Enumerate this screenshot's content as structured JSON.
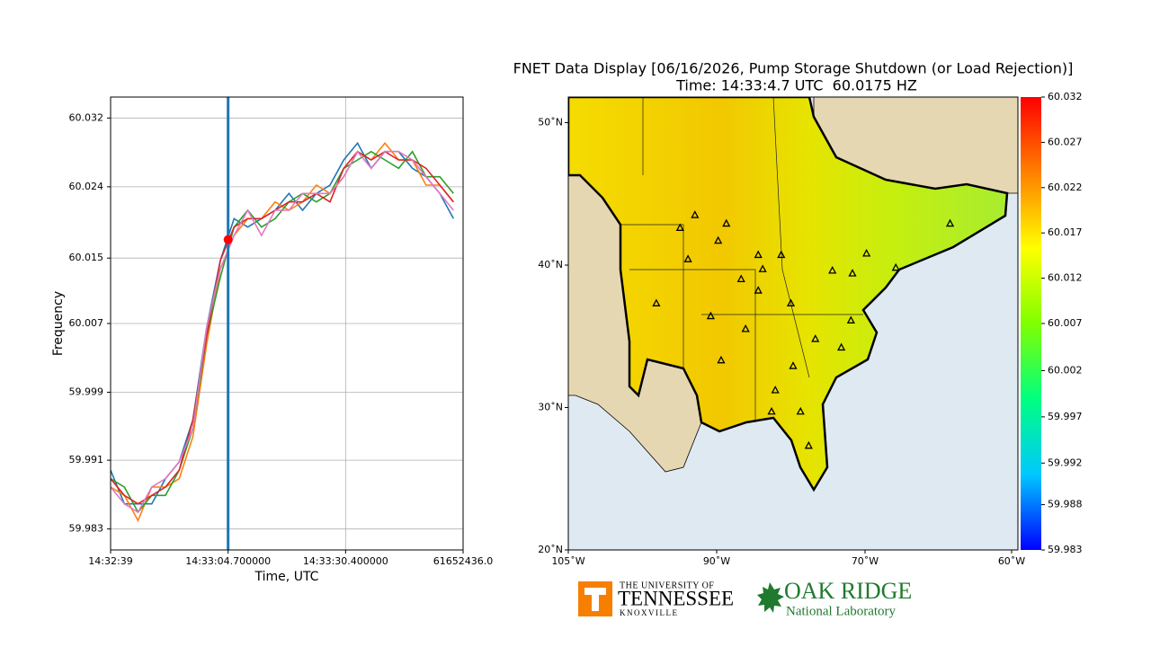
{
  "chart_data": [
    {
      "type": "line",
      "y_label": "Frequency",
      "x_label": "Time, UTC",
      "x": [
        0,
        3,
        6,
        9,
        12,
        15,
        18,
        21,
        24,
        27,
        30,
        33,
        36,
        39,
        42,
        45,
        48,
        51,
        54,
        57,
        60,
        63,
        66,
        69,
        72,
        75
      ],
      "series": [
        {
          "color": "#1f77b4",
          "values": [
            59.99,
            59.986,
            59.986,
            59.986,
            59.989,
            59.991,
            59.996,
            60.007,
            60.015,
            60.02,
            60.019,
            60.02,
            60.021,
            60.023,
            60.021,
            60.023,
            60.024,
            60.027,
            60.029,
            60.026,
            60.028,
            60.028,
            60.026,
            60.025,
            60.023,
            60.02
          ]
        },
        {
          "color": "#ff7f0e",
          "values": [
            59.988,
            59.987,
            59.984,
            59.988,
            59.988,
            59.989,
            59.994,
            60.005,
            60.014,
            60.018,
            60.02,
            60.02,
            60.022,
            60.021,
            60.022,
            60.024,
            60.023,
            60.025,
            60.028,
            60.027,
            60.029,
            60.027,
            60.027,
            60.024,
            60.024,
            60.022
          ]
        },
        {
          "color": "#2ca02c",
          "values": [
            59.989,
            59.988,
            59.985,
            59.987,
            59.987,
            59.99,
            59.995,
            60.006,
            60.013,
            60.019,
            60.021,
            60.019,
            60.02,
            60.022,
            60.023,
            60.022,
            60.023,
            60.026,
            60.027,
            60.028,
            60.027,
            60.026,
            60.028,
            60.025,
            60.025,
            60.023
          ]
        },
        {
          "color": "#d62728",
          "values": [
            59.989,
            59.987,
            59.986,
            59.987,
            59.988,
            59.99,
            59.996,
            60.006,
            60.015,
            60.019,
            60.02,
            60.02,
            60.021,
            60.022,
            60.022,
            60.023,
            60.022,
            60.026,
            60.028,
            60.027,
            60.028,
            60.027,
            60.027,
            60.026,
            60.024,
            60.022
          ]
        },
        {
          "color": "#e377c2",
          "values": [
            59.988,
            59.986,
            59.985,
            59.988,
            59.989,
            59.991,
            59.995,
            60.007,
            60.014,
            60.018,
            60.021,
            60.018,
            60.021,
            60.021,
            60.023,
            60.023,
            60.023,
            60.025,
            60.028,
            60.026,
            60.028,
            60.028,
            60.027,
            60.025,
            60.023,
            60.021
          ]
        }
      ],
      "xlim": [
        0,
        77.1
      ],
      "ylim": [
        59.9805,
        60.0345
      ],
      "xticks": [
        {
          "value": 0,
          "label": "14:32:39"
        },
        {
          "value": 25.7,
          "label": "14:33:04.700000"
        },
        {
          "value": 51.4,
          "label": "14:33:30.400000"
        },
        {
          "value": 77.1,
          "label": "61652436.0"
        }
      ],
      "yticks": [
        59.983,
        {
          "value": 59.9912,
          "label": "59.991"
        },
        {
          "value": 59.9993,
          "label": "59.999"
        },
        {
          "value": 60.0075,
          "label": "60.007"
        },
        {
          "value": 60.0153,
          "label": "60.015"
        },
        {
          "value": 60.0238,
          "label": "60.024"
        },
        60.032
      ],
      "grid": true,
      "cursor": {
        "x": 25.7,
        "y": 60.0175,
        "line_color": "#1f77b4",
        "marker_color": "#ff0000"
      }
    },
    {
      "type": "map",
      "title": "FNET Data Display [06/16/2026, Pump Storage Shutdown (or Load Rejection)]",
      "subtitle": "Time: 14:33:4.7 UTC  60.0175 HZ",
      "xlim": [
        -105,
        -59.6
      ],
      "ylim": [
        20,
        51.8
      ],
      "xticks": [
        {
          "value": -105,
          "label": "105˚W"
        },
        {
          "value": -90,
          "label": "90˚W"
        },
        {
          "value": -70,
          "label": "70˚W"
        },
        {
          "value": -60,
          "label": "60˚W"
        }
      ],
      "yticks": [
        {
          "value": 20,
          "label": "20˚N"
        },
        {
          "value": 30,
          "label": "30˚N"
        },
        {
          "value": 40,
          "label": "40˚N"
        },
        {
          "value": 50,
          "label": "50˚N"
        }
      ],
      "stations": {
        "lon": [
          -92.2,
          -88.7,
          -93.7,
          -89.8,
          -92.9,
          -84.4,
          -81.3,
          -96.1,
          -83.8,
          -86.7,
          -84.4,
          -90.6,
          -86.1,
          -80.0,
          -74.4,
          -69.9,
          -67.9,
          -71.7,
          -71.9,
          -73.2,
          -76.7,
          -79.7,
          -89.4,
          -82.1,
          -82.6,
          -78.7,
          -77.6,
          -64.2
        ],
        "lat": [
          43.5,
          42.9,
          42.6,
          41.7,
          40.4,
          40.7,
          40.7,
          37.3,
          39.7,
          39.0,
          38.2,
          36.4,
          35.5,
          37.3,
          39.6,
          40.8,
          39.8,
          39.4,
          36.1,
          34.2,
          34.8,
          32.9,
          33.3,
          31.2,
          29.7,
          29.7,
          27.3,
          42.9
        ]
      },
      "colorbar": {
        "lim": [
          59.983,
          60.032
        ],
        "colors": [
          "#0000ff",
          "#00c8ff",
          "#00ff80",
          "#80ff00",
          "#ffff00",
          "#ff8000",
          "#ff0000"
        ],
        "ticks": [
          59.983,
          {
            "value": 59.9879,
            "label": "59.988"
          },
          {
            "value": 59.9924,
            "label": "59.992"
          },
          {
            "value": 59.9974,
            "label": "59.997"
          },
          {
            "value": 60.0024,
            "label": "60.002"
          },
          {
            "value": 60.0075,
            "label": "60.007"
          },
          {
            "value": 60.0124,
            "label": "60.012"
          },
          {
            "value": 60.0173,
            "label": "60.017"
          },
          {
            "value": 60.0222,
            "label": "60.022"
          },
          {
            "value": 60.0271,
            "label": "60.027"
          },
          60.032
        ]
      }
    }
  ],
  "logos": {
    "ut_top": "THE UNIVERSITY OF",
    "ut_name": "TENNESSEE",
    "ut_city": "KNOXVILLE",
    "ornl_name": "OAK RIDGE",
    "ornl_sub": "National Laboratory"
  }
}
